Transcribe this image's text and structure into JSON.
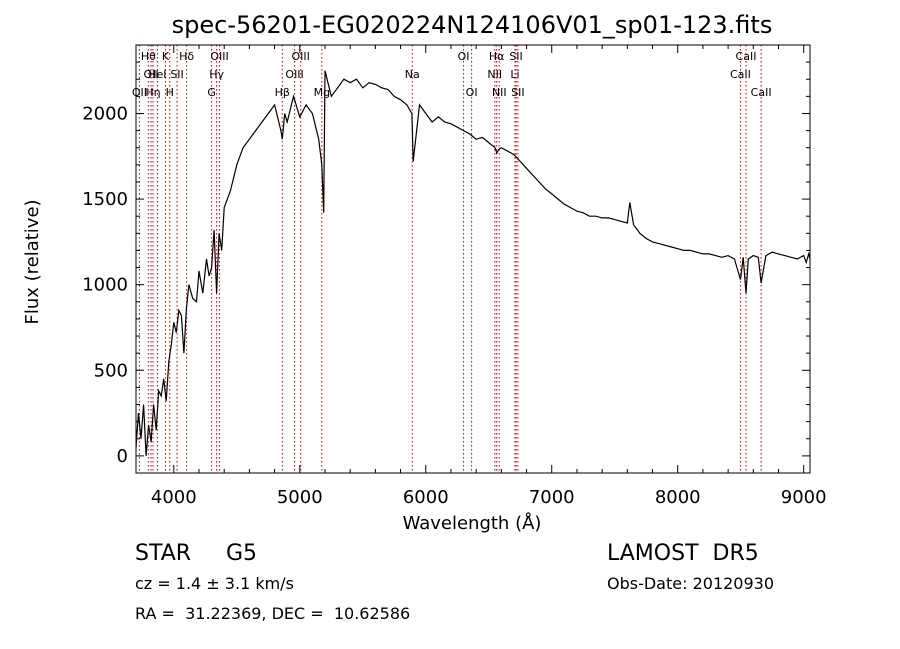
{
  "chart_data": {
    "type": "line",
    "title": "spec-56201-EG020224N124106V01_sp01-123.fits",
    "xlabel": "Wavelength (Å)",
    "ylabel": "Flux (relative)",
    "xlim": [
      3700,
      9050
    ],
    "ylim": [
      -100,
      2400
    ],
    "x_ticks": [
      4000,
      5000,
      6000,
      7000,
      8000,
      9000
    ],
    "y_ticks": [
      0,
      500,
      1000,
      1500,
      2000
    ],
    "series": [
      {
        "x": [
          3700,
          3720,
          3740,
          3760,
          3780,
          3800,
          3820,
          3840,
          3860,
          3880,
          3900,
          3920,
          3940,
          3960,
          3980,
          4000,
          4020,
          4040,
          4060,
          4080,
          4100,
          4120,
          4150,
          4180,
          4200,
          4230,
          4260,
          4280,
          4300,
          4320,
          4340,
          4360,
          4380,
          4400,
          4450,
          4500,
          4550,
          4600,
          4650,
          4700,
          4750,
          4800,
          4850,
          4861,
          4880,
          4900,
          4950,
          5000,
          5050,
          5100,
          5150,
          5175,
          5190,
          5200,
          5250,
          5300,
          5350,
          5400,
          5450,
          5500,
          5550,
          5600,
          5650,
          5700,
          5750,
          5800,
          5850,
          5890,
          5900,
          5950,
          6000,
          6050,
          6100,
          6150,
          6200,
          6250,
          6300,
          6350,
          6400,
          6450,
          6500,
          6550,
          6563,
          6580,
          6600,
          6650,
          6700,
          6750,
          6800,
          6850,
          6900,
          6950,
          7000,
          7050,
          7100,
          7150,
          7200,
          7250,
          7300,
          7350,
          7400,
          7450,
          7500,
          7550,
          7600,
          7620,
          7650,
          7700,
          7750,
          7800,
          7850,
          7900,
          7950,
          8000,
          8050,
          8100,
          8150,
          8200,
          8250,
          8300,
          8350,
          8400,
          8450,
          8498,
          8520,
          8542,
          8560,
          8600,
          8640,
          8662,
          8700,
          8750,
          8800,
          8850,
          8900,
          8950,
          9000,
          9020,
          9040,
          9050
        ],
        "y": [
          50,
          250,
          100,
          300,
          0,
          180,
          80,
          300,
          150,
          380,
          350,
          450,
          320,
          550,
          650,
          780,
          720,
          850,
          820,
          600,
          860,
          1000,
          920,
          900,
          1080,
          950,
          1150,
          1050,
          1100,
          1320,
          950,
          1300,
          1200,
          1450,
          1550,
          1700,
          1800,
          1850,
          1900,
          1950,
          2000,
          2050,
          1900,
          1850,
          2000,
          1950,
          2100,
          1980,
          2050,
          2000,
          1850,
          1700,
          1420,
          2250,
          2100,
          2150,
          2200,
          2180,
          2200,
          2150,
          2180,
          2170,
          2150,
          2140,
          2100,
          2080,
          2050,
          2000,
          1720,
          2050,
          2000,
          1950,
          1980,
          1950,
          1940,
          1920,
          1900,
          1880,
          1850,
          1860,
          1830,
          1800,
          1770,
          1790,
          1800,
          1780,
          1760,
          1720,
          1680,
          1640,
          1600,
          1560,
          1530,
          1500,
          1470,
          1450,
          1430,
          1420,
          1400,
          1400,
          1390,
          1390,
          1380,
          1370,
          1360,
          1480,
          1350,
          1300,
          1270,
          1250,
          1240,
          1230,
          1220,
          1210,
          1200,
          1200,
          1190,
          1180,
          1180,
          1170,
          1160,
          1170,
          1150,
          1030,
          1160,
          950,
          1150,
          1170,
          1160,
          1010,
          1170,
          1190,
          1180,
          1170,
          1160,
          1150,
          1170,
          1130,
          1180,
          1150
        ]
      }
    ],
    "line_markers": [
      {
        "wl": 3727,
        "label": "OII",
        "row": 2
      },
      {
        "wl": 3798,
        "label": "Hθ",
        "row": 0
      },
      {
        "wl": 3820,
        "label": "OII",
        "row": 1
      },
      {
        "wl": 3835,
        "label": "Hη",
        "row": 2
      },
      {
        "wl": 3870,
        "label": "HeI",
        "row": 1
      },
      {
        "wl": 3934,
        "label": "K",
        "row": 0
      },
      {
        "wl": 3968,
        "label": "H",
        "row": 2
      },
      {
        "wl": 4026,
        "label": "SII",
        "row": 1
      },
      {
        "wl": 4102,
        "label": "Hδ",
        "row": 0
      },
      {
        "wl": 4300,
        "label": "G",
        "row": 2
      },
      {
        "wl": 4340,
        "label": "Hγ",
        "row": 1
      },
      {
        "wl": 4363,
        "label": "OIII",
        "row": 0
      },
      {
        "wl": 4861,
        "label": "Hβ",
        "row": 2
      },
      {
        "wl": 4959,
        "label": "OIII",
        "row": 1
      },
      {
        "wl": 5007,
        "label": "OIII",
        "row": 0
      },
      {
        "wl": 5175,
        "label": "Mg",
        "row": 2
      },
      {
        "wl": 5893,
        "label": "Na",
        "row": 1
      },
      {
        "wl": 6300,
        "label": "OI",
        "row": 0
      },
      {
        "wl": 6364,
        "label": "OI",
        "row": 2
      },
      {
        "wl": 6548,
        "label": "NII",
        "row": 1
      },
      {
        "wl": 6563,
        "label": "Hα",
        "row": 0
      },
      {
        "wl": 6583,
        "label": "NII",
        "row": 2
      },
      {
        "wl": 6708,
        "label": "Li",
        "row": 1
      },
      {
        "wl": 6717,
        "label": "SII",
        "row": 0
      },
      {
        "wl": 6731,
        "label": "SII",
        "row": 2
      },
      {
        "wl": 8498,
        "label": "CaII",
        "row": 1
      },
      {
        "wl": 8542,
        "label": "CaII",
        "row": 0
      },
      {
        "wl": 8662,
        "label": "CaII",
        "row": 2
      }
    ],
    "marker_color": "#c00000"
  },
  "info": {
    "object_class": "STAR",
    "subclass": "G5",
    "survey": "LAMOST  DR5",
    "cz": "cz = 1.4 ± 3.1 km/s",
    "obs_date": "Obs-Date: 20120930",
    "coords": "RA =  31.22369, DEC =  10.62586"
  }
}
